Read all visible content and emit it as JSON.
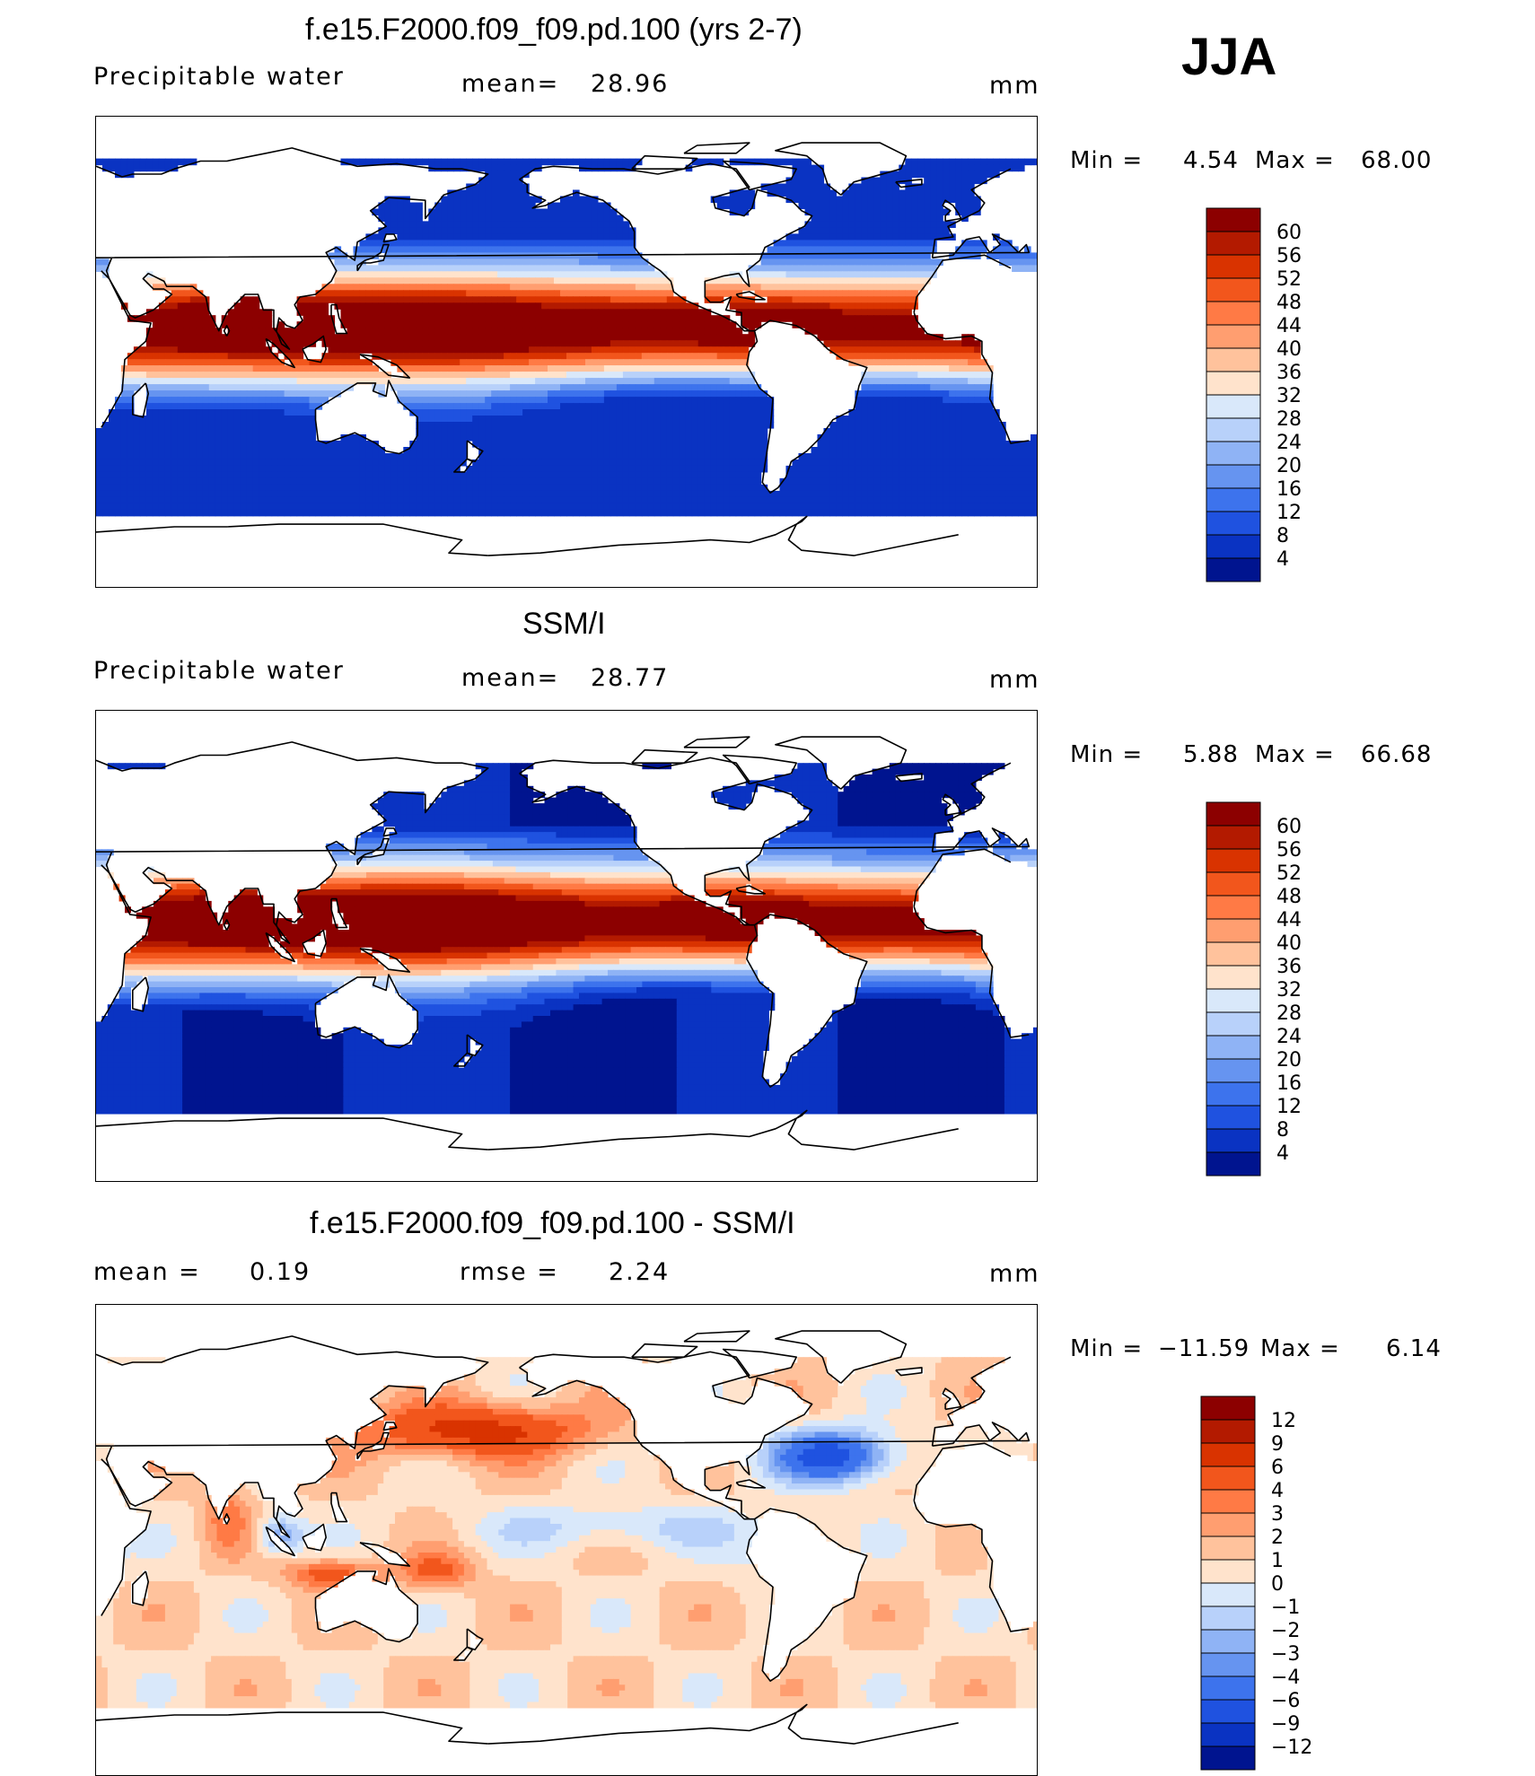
{
  "season": "JJA",
  "panels": [
    {
      "id": "model",
      "title": "f.e15.F2000.f09_f09.pd.100 (yrs 2-7)",
      "variable": "Precipitable water",
      "stat1_label": "mean=",
      "stat1_value": "28.96",
      "units": "mm",
      "min_label": "Min  =",
      "min_value": "4.54",
      "max_label": "Max  =",
      "max_value": "68.00"
    },
    {
      "id": "obs",
      "title": "SSM/I",
      "variable": "Precipitable water",
      "stat1_label": "mean=",
      "stat1_value": "28.77",
      "units": "mm",
      "min_label": "Min  =",
      "min_value": "5.88",
      "max_label": "Max  =",
      "max_value": "66.68"
    },
    {
      "id": "diff",
      "title": "f.e15.F2000.f09_f09.pd.100 - SSM/I",
      "stat1_label": "mean =",
      "stat1_value": "0.19",
      "stat2_label": "rmse =",
      "stat2_value": "2.24",
      "units": "mm",
      "min_label": "Min  =",
      "min_value": "−11.59",
      "max_label": "Max  =",
      "max_value": "6.14"
    }
  ],
  "chart_data": [
    {
      "type": "heatmap",
      "title": "f.e15.F2000.f09_f09.pd.100 (yrs 2-7)",
      "variable": "Precipitable water",
      "units": "mm",
      "mean": 28.96,
      "min": 4.54,
      "max": 68.0,
      "colorbar_levels": [
        "60",
        "56",
        "52",
        "48",
        "44",
        "40",
        "36",
        "32",
        "28",
        "24",
        "20",
        "16",
        "12",
        "8",
        "4"
      ],
      "colorbar_colors": [
        "#8c0000",
        "#b31a00",
        "#d93300",
        "#f2561c",
        "#ff7a45",
        "#ff9e70",
        "#ffc29c",
        "#ffe3cc",
        "#d9e8fa",
        "#b8d1fa",
        "#8fb3f5",
        "#6694f0",
        "#3d73ed",
        "#1f52e0",
        "#0a33c2",
        "#00148f"
      ]
    },
    {
      "type": "heatmap",
      "title": "SSM/I",
      "variable": "Precipitable water",
      "units": "mm",
      "mean": 28.77,
      "min": 5.88,
      "max": 66.68,
      "colorbar_levels": [
        "60",
        "56",
        "52",
        "48",
        "44",
        "40",
        "36",
        "32",
        "28",
        "24",
        "20",
        "16",
        "12",
        "8",
        "4"
      ],
      "colorbar_colors": [
        "#8c0000",
        "#b31a00",
        "#d93300",
        "#f2561c",
        "#ff7a45",
        "#ff9e70",
        "#ffc29c",
        "#ffe3cc",
        "#d9e8fa",
        "#b8d1fa",
        "#8fb3f5",
        "#6694f0",
        "#3d73ed",
        "#1f52e0",
        "#0a33c2",
        "#00148f"
      ]
    },
    {
      "type": "heatmap",
      "title": "f.e15.F2000.f09_f09.pd.100 - SSM/I",
      "units": "mm",
      "mean": 0.19,
      "rmse": 2.24,
      "min": -11.59,
      "max": 6.14,
      "colorbar_levels": [
        "12",
        "9",
        "6",
        "4",
        "3",
        "2",
        "1",
        "0",
        "−1",
        "−2",
        "−3",
        "−4",
        "−6",
        "−9",
        "−12"
      ],
      "colorbar_colors": [
        "#8c0000",
        "#b31a00",
        "#d93300",
        "#f2561c",
        "#ff7a45",
        "#ff9e70",
        "#ffc29c",
        "#ffe3cc",
        "#d9e8fa",
        "#b8d1fa",
        "#8fb3f5",
        "#6694f0",
        "#3d73ed",
        "#1f52e0",
        "#0a33c2",
        "#00148f"
      ]
    }
  ]
}
